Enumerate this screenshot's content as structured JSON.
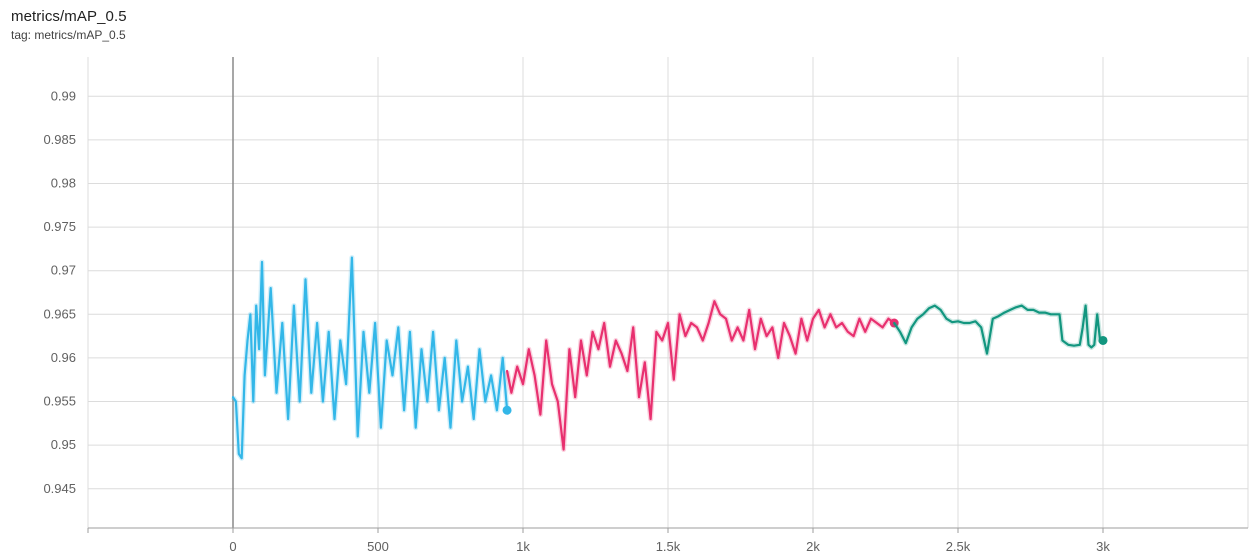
{
  "header": {
    "title": "metrics/mAP_0.5",
    "tag_label": "tag: metrics/mAP_0.5"
  },
  "colors": {
    "run_1": "#33b7e8",
    "run_2": "#e8306f",
    "run_3": "#12967f",
    "grid": "#dcdcdc",
    "zero_line": "#8a8a8a"
  },
  "chart_data": {
    "type": "line",
    "title": "metrics/mAP_0.5",
    "xlabel": "",
    "ylabel": "",
    "xlim": [
      -500,
      3500
    ],
    "ylim": [
      0.9405,
      0.9945
    ],
    "x_ticks": [
      0,
      500,
      1000,
      1500,
      2000,
      2500,
      3000
    ],
    "x_tick_labels": [
      "0",
      "500",
      "1k",
      "1.5k",
      "2k",
      "2.5k",
      "3k"
    ],
    "y_ticks": [
      0.945,
      0.95,
      0.955,
      0.96,
      0.965,
      0.97,
      0.975,
      0.98,
      0.985,
      0.99
    ],
    "y_tick_labels": [
      "0.945",
      "0.95",
      "0.955",
      "0.96",
      "0.965",
      "0.97",
      "0.975",
      "0.98",
      "0.985",
      "0.99"
    ],
    "grid": true,
    "legend": "none",
    "series": [
      {
        "x": [
          0,
          10,
          20,
          30,
          40,
          50,
          60,
          70,
          80,
          90,
          100,
          110,
          130,
          150,
          170,
          190,
          210,
          230,
          250,
          270,
          290,
          310,
          330,
          350,
          370,
          390,
          410,
          430,
          450,
          470,
          490,
          510,
          530,
          550,
          570,
          590,
          610,
          630,
          650,
          670,
          690,
          710,
          730,
          750,
          770,
          790,
          810,
          830,
          850,
          870,
          890,
          910,
          930,
          945
        ],
        "y": [
          0.9555,
          0.955,
          0.949,
          0.9485,
          0.958,
          0.962,
          0.965,
          0.955,
          0.966,
          0.961,
          0.971,
          0.958,
          0.968,
          0.956,
          0.964,
          0.953,
          0.966,
          0.955,
          0.969,
          0.956,
          0.964,
          0.955,
          0.963,
          0.953,
          0.962,
          0.957,
          0.9715,
          0.951,
          0.963,
          0.956,
          0.964,
          0.952,
          0.962,
          0.958,
          0.9635,
          0.954,
          0.963,
          0.952,
          0.961,
          0.955,
          0.963,
          0.954,
          0.96,
          0.952,
          0.962,
          0.955,
          0.959,
          0.953,
          0.961,
          0.955,
          0.958,
          0.954,
          0.96,
          0.954
        ]
      },
      {
        "x": [
          945,
          960,
          980,
          1000,
          1020,
          1040,
          1060,
          1080,
          1100,
          1120,
          1140,
          1160,
          1180,
          1200,
          1220,
          1240,
          1260,
          1280,
          1300,
          1320,
          1340,
          1360,
          1380,
          1400,
          1420,
          1440,
          1460,
          1480,
          1500,
          1520,
          1540,
          1560,
          1580,
          1600,
          1620,
          1640,
          1660,
          1680,
          1700,
          1720,
          1740,
          1760,
          1780,
          1800,
          1820,
          1840,
          1860,
          1880,
          1900,
          1920,
          1940,
          1960,
          1980,
          2000,
          2020,
          2040,
          2060,
          2080,
          2100,
          2120,
          2140,
          2160,
          2180,
          2200,
          2220,
          2240,
          2260,
          2280
        ],
        "y": [
          0.9585,
          0.956,
          0.959,
          0.957,
          0.961,
          0.958,
          0.9535,
          0.962,
          0.957,
          0.955,
          0.9495,
          0.961,
          0.9555,
          0.962,
          0.958,
          0.963,
          0.961,
          0.964,
          0.959,
          0.962,
          0.9605,
          0.9585,
          0.9635,
          0.9555,
          0.9595,
          0.953,
          0.963,
          0.962,
          0.964,
          0.9575,
          0.965,
          0.9625,
          0.964,
          0.9635,
          0.962,
          0.964,
          0.9665,
          0.965,
          0.9645,
          0.962,
          0.9635,
          0.962,
          0.9655,
          0.961,
          0.9645,
          0.9625,
          0.9635,
          0.96,
          0.964,
          0.9625,
          0.9605,
          0.9645,
          0.962,
          0.9645,
          0.9655,
          0.9635,
          0.965,
          0.9635,
          0.964,
          0.963,
          0.9625,
          0.9645,
          0.963,
          0.9645,
          0.964,
          0.9635,
          0.9645,
          0.964
        ]
      },
      {
        "x": [
          2280,
          2300,
          2320,
          2340,
          2360,
          2380,
          2400,
          2420,
          2440,
          2460,
          2480,
          2500,
          2520,
          2540,
          2560,
          2580,
          2600,
          2620,
          2640,
          2660,
          2680,
          2700,
          2720,
          2740,
          2760,
          2780,
          2800,
          2820,
          2840,
          2850,
          2860,
          2880,
          2900,
          2920,
          2930,
          2940,
          2950,
          2960,
          2970,
          2980,
          2990,
          3000
        ],
        "y": [
          0.964,
          0.963,
          0.9617,
          0.9635,
          0.9645,
          0.965,
          0.9657,
          0.966,
          0.9655,
          0.9645,
          0.9641,
          0.9642,
          0.964,
          0.964,
          0.9642,
          0.9635,
          0.9605,
          0.9645,
          0.9648,
          0.9652,
          0.9655,
          0.9658,
          0.966,
          0.9655,
          0.9655,
          0.9652,
          0.9652,
          0.965,
          0.965,
          0.965,
          0.962,
          0.9615,
          0.9614,
          0.9615,
          0.9635,
          0.966,
          0.9615,
          0.9612,
          0.9615,
          0.965,
          0.962,
          0.962
        ]
      }
    ]
  }
}
